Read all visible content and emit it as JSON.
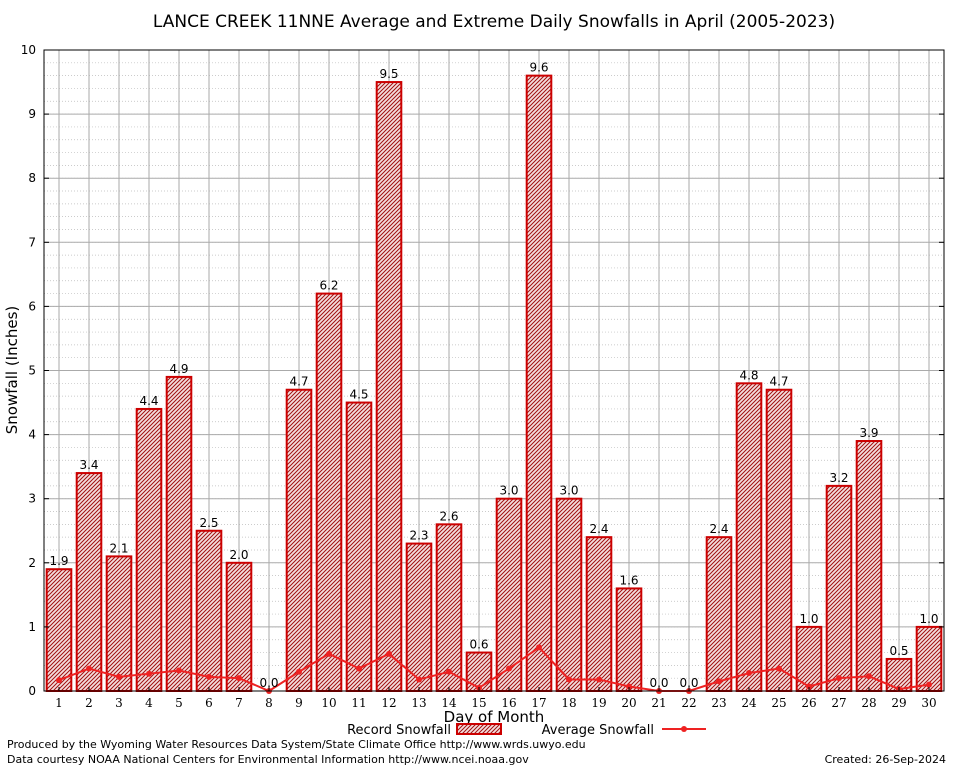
{
  "chart_data": {
    "type": "bar",
    "title": "LANCE CREEK 11NNE Average and Extreme Daily Snowfalls in April (2005-2023)",
    "xlabel": "Day of Month",
    "ylabel": "Snowfall (Inches)",
    "ylim": [
      0,
      10
    ],
    "yticks": [
      "0",
      "1",
      "2",
      "3",
      "4",
      "5",
      "6",
      "7",
      "8",
      "9",
      "10"
    ],
    "categories": [
      "1",
      "2",
      "3",
      "4",
      "5",
      "6",
      "7",
      "8",
      "9",
      "10",
      "11",
      "12",
      "13",
      "14",
      "15",
      "16",
      "17",
      "18",
      "19",
      "20",
      "21",
      "22",
      "23",
      "24",
      "25",
      "26",
      "27",
      "28",
      "29",
      "30"
    ],
    "grid": true,
    "legend_position": "bottom",
    "series": [
      {
        "name": "Record Snowfall",
        "kind": "bar",
        "color": "#cc0000",
        "values": [
          1.9,
          3.4,
          2.1,
          4.4,
          4.9,
          2.5,
          2.0,
          0.0,
          4.7,
          6.2,
          4.5,
          9.5,
          2.3,
          2.6,
          0.6,
          3.0,
          9.6,
          3.0,
          2.4,
          1.6,
          0.0,
          0.0,
          2.4,
          4.8,
          4.7,
          1.0,
          3.2,
          3.9,
          0.5,
          1.0
        ],
        "labels": [
          "1.9",
          "3.4",
          "2.1",
          "4.4",
          "4.9",
          "2.5",
          "2.0",
          "0.0",
          "4.7",
          "6.2",
          "4.5",
          "9.5",
          "2.3",
          "2.6",
          "0.6",
          "3.0",
          "9.6",
          "3.0",
          "2.4",
          "1.6",
          "0.0",
          "0.0",
          "2.4",
          "4.8",
          "4.7",
          "1.0",
          "3.2",
          "3.9",
          "0.5",
          "1.0"
        ]
      },
      {
        "name": "Average Snowfall",
        "kind": "line",
        "color": "#ee2222",
        "values": [
          0.17,
          0.35,
          0.22,
          0.27,
          0.32,
          0.22,
          0.2,
          0.0,
          0.3,
          0.58,
          0.35,
          0.58,
          0.18,
          0.3,
          0.05,
          0.35,
          0.68,
          0.18,
          0.18,
          0.07,
          0.0,
          0.0,
          0.15,
          0.28,
          0.35,
          0.07,
          0.2,
          0.23,
          0.03,
          0.1
        ]
      }
    ]
  },
  "footer": {
    "credit_line1": "Produced by the Wyoming Water Resources Data System/State Climate Office http://www.wrds.uwyo.edu",
    "credit_line2": "Data courtesy NOAA National Centers for Environmental Information http://www.ncei.noaa.gov",
    "created": "Created:  26-Sep-2024"
  }
}
